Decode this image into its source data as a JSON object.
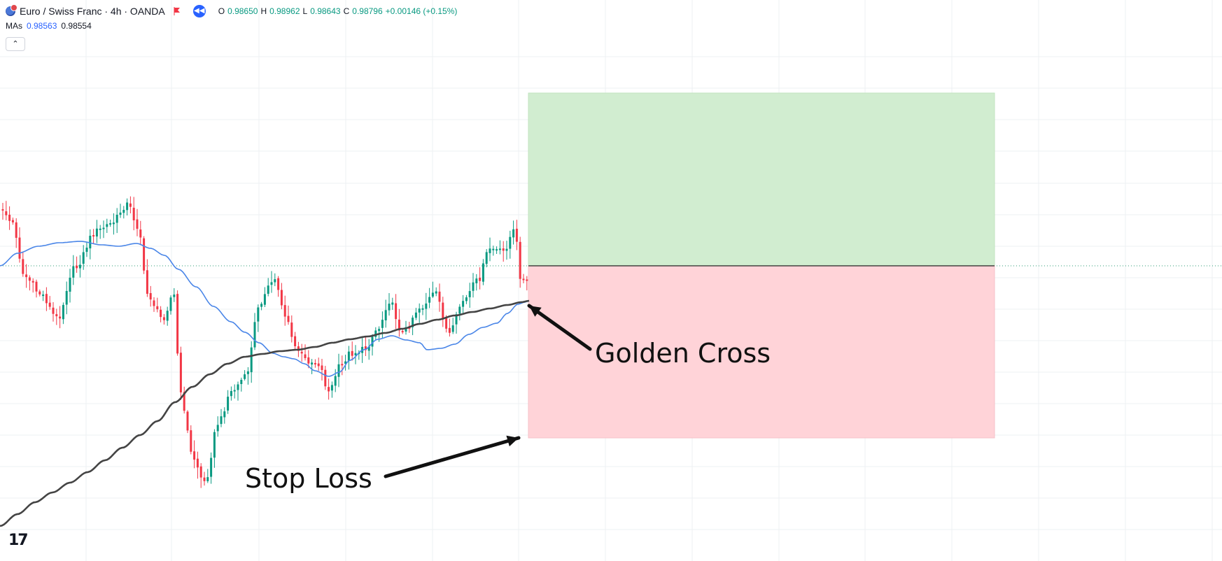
{
  "header": {
    "symbol": "Euro / Swiss Franc · 4h · OANDA",
    "ohlc": [
      {
        "k": "O",
        "v": "0.98650"
      },
      {
        "k": "H",
        "v": "0.98962"
      },
      {
        "k": "L",
        "v": "0.98643"
      },
      {
        "k": "C",
        "v": "0.98796"
      },
      {
        "k": "",
        "v": "+0.00146 (+0.15%)"
      }
    ]
  },
  "indicators": {
    "label": "MAs",
    "fast_ma": "0.98563",
    "slow_ma": "0.98554"
  },
  "annotations": {
    "golden_cross": "Golden Cross",
    "stop_loss": "Stop Loss"
  },
  "chart_data": {
    "type": "candlestick",
    "series": [
      {
        "name": "MAs",
        "color": "#4a86e8"
      },
      {
        "name": "MAs",
        "color": "#444444"
      }
    ],
    "price_line": {
      "style": "dotted",
      "color": "#2f9e76"
    },
    "position_tool": {
      "profit_zone_color": "#cfeccd",
      "loss_zone_color": "#ffd1d6",
      "entry_color": "#222222"
    },
    "colors": {
      "up": "#089981",
      "down": "#f23645",
      "grid": "#eef0f3",
      "annotation": "#111111"
    }
  }
}
